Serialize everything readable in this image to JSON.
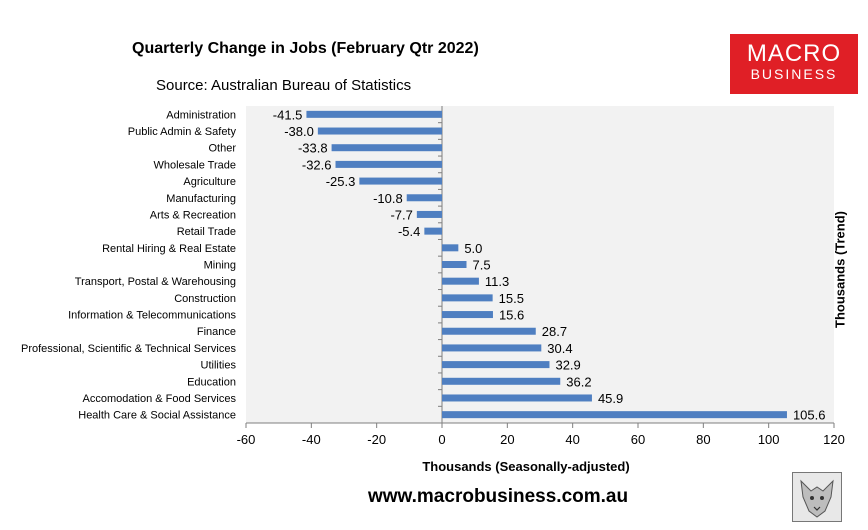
{
  "chart_data": {
    "type": "bar",
    "orientation": "horizontal",
    "title": "Quarterly Change in Jobs (February Qtr 2022)",
    "subtitle": "Source: Australian Bureau of Statistics",
    "xlabel": "Thousands (Seasonally-adjusted)",
    "ylabel": "Thousands (Trend)",
    "xlim": [
      -60,
      120
    ],
    "xticks": [
      -60,
      -40,
      -20,
      0,
      20,
      40,
      60,
      80,
      100,
      120
    ],
    "grid": false,
    "legend": "none",
    "bar_color": "#4f7fc1",
    "plot_background": "#f2f2f2",
    "categories": [
      "Administration",
      "Public Admin & Safety",
      "Other",
      "Wholesale Trade",
      "Agriculture",
      "Manufacturing",
      "Arts & Recreation",
      "Retail Trade",
      "Rental Hiring & Real Estate",
      "Mining",
      "Transport, Postal & Warehousing",
      "Construction",
      "Information & Telecommunications",
      "Finance",
      "Professional, Scientific & Technical Services",
      "Utilities",
      "Education",
      "Accomodation & Food Services",
      "Health Care & Social Assistance"
    ],
    "values": [
      -41.5,
      -38.0,
      -33.8,
      -32.6,
      -25.3,
      -10.8,
      -7.7,
      -5.4,
      5.0,
      7.5,
      11.3,
      15.5,
      15.6,
      28.7,
      30.4,
      32.9,
      36.2,
      45.9,
      105.6
    ],
    "value_labels": [
      "-41.5",
      "-38.0",
      "-33.8",
      "-32.6",
      "-25.3",
      "-10.8",
      "-7.7",
      "-5.4",
      "5.0",
      "7.5",
      "11.3",
      "15.5",
      "15.6",
      "28.7",
      "30.4",
      "32.9",
      "36.2",
      "45.9",
      "105.6"
    ]
  },
  "branding": {
    "logo_line1": "MACRO",
    "logo_line2": "BUSINESS",
    "logo_color": "#e01f26",
    "url": "www.macrobusiness.com.au",
    "mascot_icon": "wolf-icon"
  }
}
